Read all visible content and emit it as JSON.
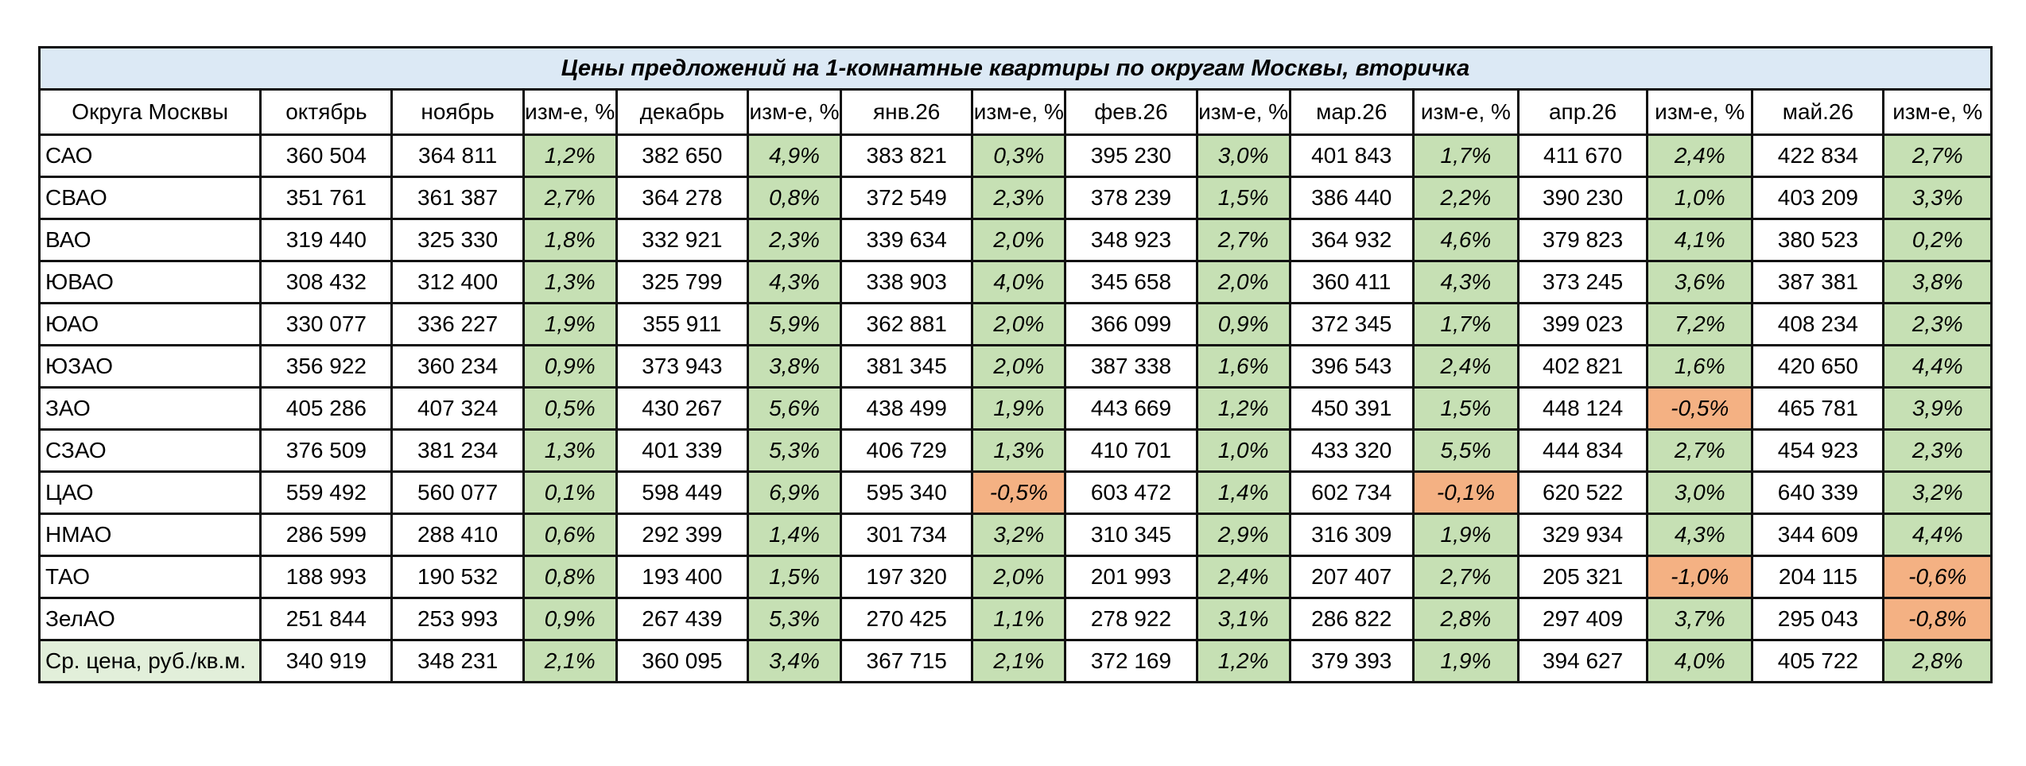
{
  "title": "Цены предложений на 1-комнатные квартиры по округам Москвы, вторичка",
  "colors": {
    "positive": "#c6e0b4",
    "negative": "#f4b183",
    "title_bg": "#dce9f5"
  },
  "headers": [
    "Округа Москвы",
    "октябрь",
    "ноябрь",
    "изм-е, %",
    "декабрь",
    "изм-е, %",
    "янв.26",
    "изм-е, %",
    "фев.26",
    "изм-е, %",
    "мар.26",
    "изм-е, %",
    "апр.26",
    "изм-е, %",
    "май.26",
    "изм-е, %"
  ],
  "rows": [
    [
      "САО",
      "360 504",
      "364 811",
      "1,2%",
      "382 650",
      "4,9%",
      "383 821",
      "0,3%",
      "395 230",
      "3,0%",
      "401 843",
      "1,7%",
      "411 670",
      "2,4%",
      "422 834",
      "2,7%"
    ],
    [
      "СВАО",
      "351 761",
      "361 387",
      "2,7%",
      "364 278",
      "0,8%",
      "372 549",
      "2,3%",
      "378 239",
      "1,5%",
      "386 440",
      "2,2%",
      "390 230",
      "1,0%",
      "403 209",
      "3,3%"
    ],
    [
      "ВАО",
      "319 440",
      "325 330",
      "1,8%",
      "332 921",
      "2,3%",
      "339 634",
      "2,0%",
      "348 923",
      "2,7%",
      "364 932",
      "4,6%",
      "379 823",
      "4,1%",
      "380 523",
      "0,2%"
    ],
    [
      "ЮВАО",
      "308 432",
      "312 400",
      "1,3%",
      "325 799",
      "4,3%",
      "338 903",
      "4,0%",
      "345 658",
      "2,0%",
      "360 411",
      "4,3%",
      "373 245",
      "3,6%",
      "387 381",
      "3,8%"
    ],
    [
      "ЮАО",
      "330 077",
      "336 227",
      "1,9%",
      "355 911",
      "5,9%",
      "362 881",
      "2,0%",
      "366 099",
      "0,9%",
      "372 345",
      "1,7%",
      "399 023",
      "7,2%",
      "408 234",
      "2,3%"
    ],
    [
      "ЮЗАО",
      "356 922",
      "360 234",
      "0,9%",
      "373 943",
      "3,8%",
      "381 345",
      "2,0%",
      "387 338",
      "1,6%",
      "396 543",
      "2,4%",
      "402 821",
      "1,6%",
      "420 650",
      "4,4%"
    ],
    [
      "ЗАО",
      "405 286",
      "407 324",
      "0,5%",
      "430 267",
      "5,6%",
      "438 499",
      "1,9%",
      "443 669",
      "1,2%",
      "450 391",
      "1,5%",
      "448 124",
      "-0,5%",
      "465 781",
      "3,9%"
    ],
    [
      "СЗАО",
      "376 509",
      "381 234",
      "1,3%",
      "401 339",
      "5,3%",
      "406 729",
      "1,3%",
      "410 701",
      "1,0%",
      "433 320",
      "5,5%",
      "444 834",
      "2,7%",
      "454 923",
      "2,3%"
    ],
    [
      "ЦАО",
      "559 492",
      "560 077",
      "0,1%",
      "598 449",
      "6,9%",
      "595 340",
      "-0,5%",
      "603 472",
      "1,4%",
      "602 734",
      "-0,1%",
      "620 522",
      "3,0%",
      "640 339",
      "3,2%"
    ],
    [
      "НМАО",
      "286 599",
      "288 410",
      "0,6%",
      "292 399",
      "1,4%",
      "301 734",
      "3,2%",
      "310 345",
      "2,9%",
      "316 309",
      "1,9%",
      "329 934",
      "4,3%",
      "344 609",
      "4,4%"
    ],
    [
      "ТАО",
      "188 993",
      "190 532",
      "0,8%",
      "193 400",
      "1,5%",
      "197 320",
      "2,0%",
      "201 993",
      "2,4%",
      "207 407",
      "2,7%",
      "205 321",
      "-1,0%",
      "204 115",
      "-0,6%"
    ],
    [
      "ЗелАО",
      "251 844",
      "253 993",
      "0,9%",
      "267 439",
      "5,3%",
      "270 425",
      "1,1%",
      "278 922",
      "3,1%",
      "286 822",
      "2,8%",
      "297 409",
      "3,7%",
      "295 043",
      "-0,8%"
    ],
    [
      "Ср. цена, руб./кв.м.",
      "340 919",
      "348 231",
      "2,1%",
      "360 095",
      "3,4%",
      "367 715",
      "2,1%",
      "372 169",
      "1,2%",
      "379 393",
      "1,9%",
      "394 627",
      "4,0%",
      "405 722",
      "2,8%"
    ]
  ]
}
